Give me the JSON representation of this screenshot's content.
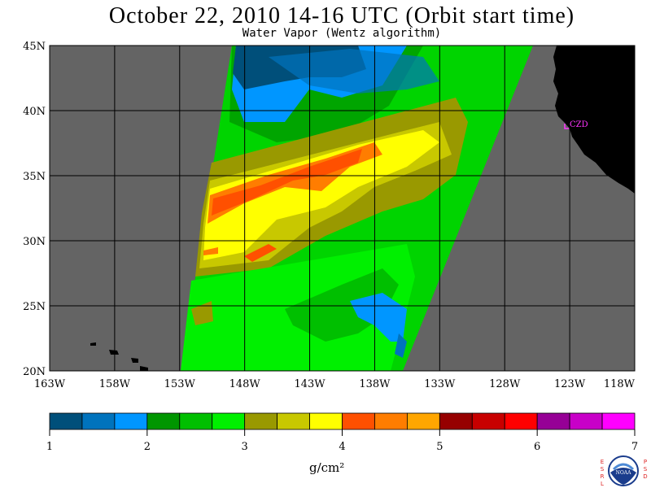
{
  "title": "October 22, 2010  14-16 UTC  (Orbit start time)",
  "subtitle": "Water Vapor (Wentz algorithm)",
  "map": {
    "lat_labels": [
      "45N",
      "40N",
      "35N",
      "30N",
      "25N",
      "20N"
    ],
    "lon_labels": [
      "163W",
      "158W",
      "153W",
      "148W",
      "143W",
      "138W",
      "133W",
      "128W",
      "123W",
      "118W"
    ],
    "station_label": "CZD",
    "colors": {
      "no_data": "#646464",
      "land": "#000000",
      "grid": "#000000",
      "station": "#ff33ff"
    }
  },
  "colorbar": {
    "tick_labels": [
      "1",
      "2",
      "3",
      "4",
      "5",
      "6",
      "7"
    ],
    "unit_label": "g/cm²",
    "range": [
      1,
      7
    ],
    "colors": [
      "#004f7a",
      "#0073bd",
      "#0096ff",
      "#009600",
      "#00bf00",
      "#00f000",
      "#999900",
      "#c8c800",
      "#ffff00",
      "#ff5000",
      "#ff7d00",
      "#ffa600",
      "#960000",
      "#c80000",
      "#ff0000",
      "#960096",
      "#c800c8",
      "#ff00ff"
    ]
  },
  "logo": {
    "left_letters": [
      "E",
      "S",
      "R",
      "L"
    ],
    "right_letters": [
      "P",
      "S",
      "D"
    ],
    "text": "NOAA"
  }
}
